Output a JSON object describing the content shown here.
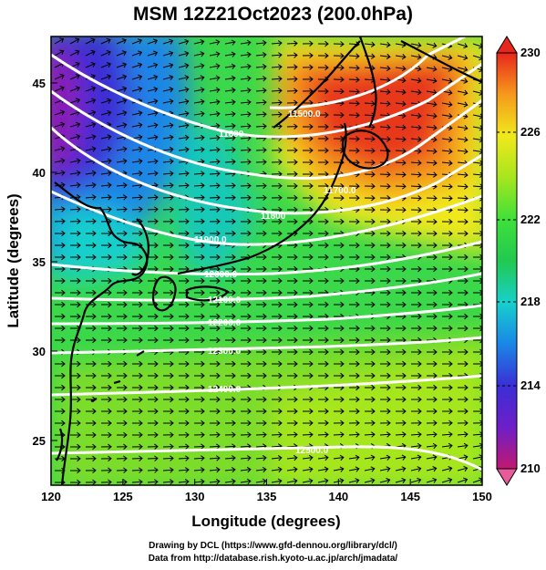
{
  "title": "MSM 12Z21Oct2023 (200.0hPa)",
  "axes": {
    "xlabel": "Longitude (degrees)",
    "ylabel": "Latitude  (degrees)",
    "x_ticks": [
      "120",
      "125",
      "130",
      "135",
      "140",
      "145",
      "150"
    ],
    "y_ticks": [
      "25",
      "30",
      "35",
      "40",
      "45"
    ]
  },
  "colorbar": {
    "ticks": [
      "230",
      "226",
      "222",
      "218",
      "214",
      "210"
    ],
    "colors": {
      "v210": "#c2186f",
      "v213": "#3a2fd6",
      "v216": "#1a86e6",
      "v218": "#17d0cc",
      "v220": "#22c94f",
      "v222": "#3fe03a",
      "v224": "#a6e61e",
      "v226": "#f0e81c",
      "v228": "#f59a1c",
      "v230": "#e8271c"
    }
  },
  "contour_labels": {
    "c11500": "11500.0",
    "c11600a": "11600",
    "c11700": "11700.0",
    "c11800": "11800",
    "c11900": "11900.0",
    "c12000": "12000.0",
    "c12100": "12100.0",
    "c12200": "12200.0",
    "c12300": "12300.0",
    "c12400": "12400.0",
    "c12500": "12500.0"
  },
  "credits": {
    "line1": "Drawing by DCL (https://www.gfd-dennou.org/library/dcl/)",
    "line2": "Data from http://database.rish.kyoto-u.ac.jp/arch/jmadata/"
  }
}
